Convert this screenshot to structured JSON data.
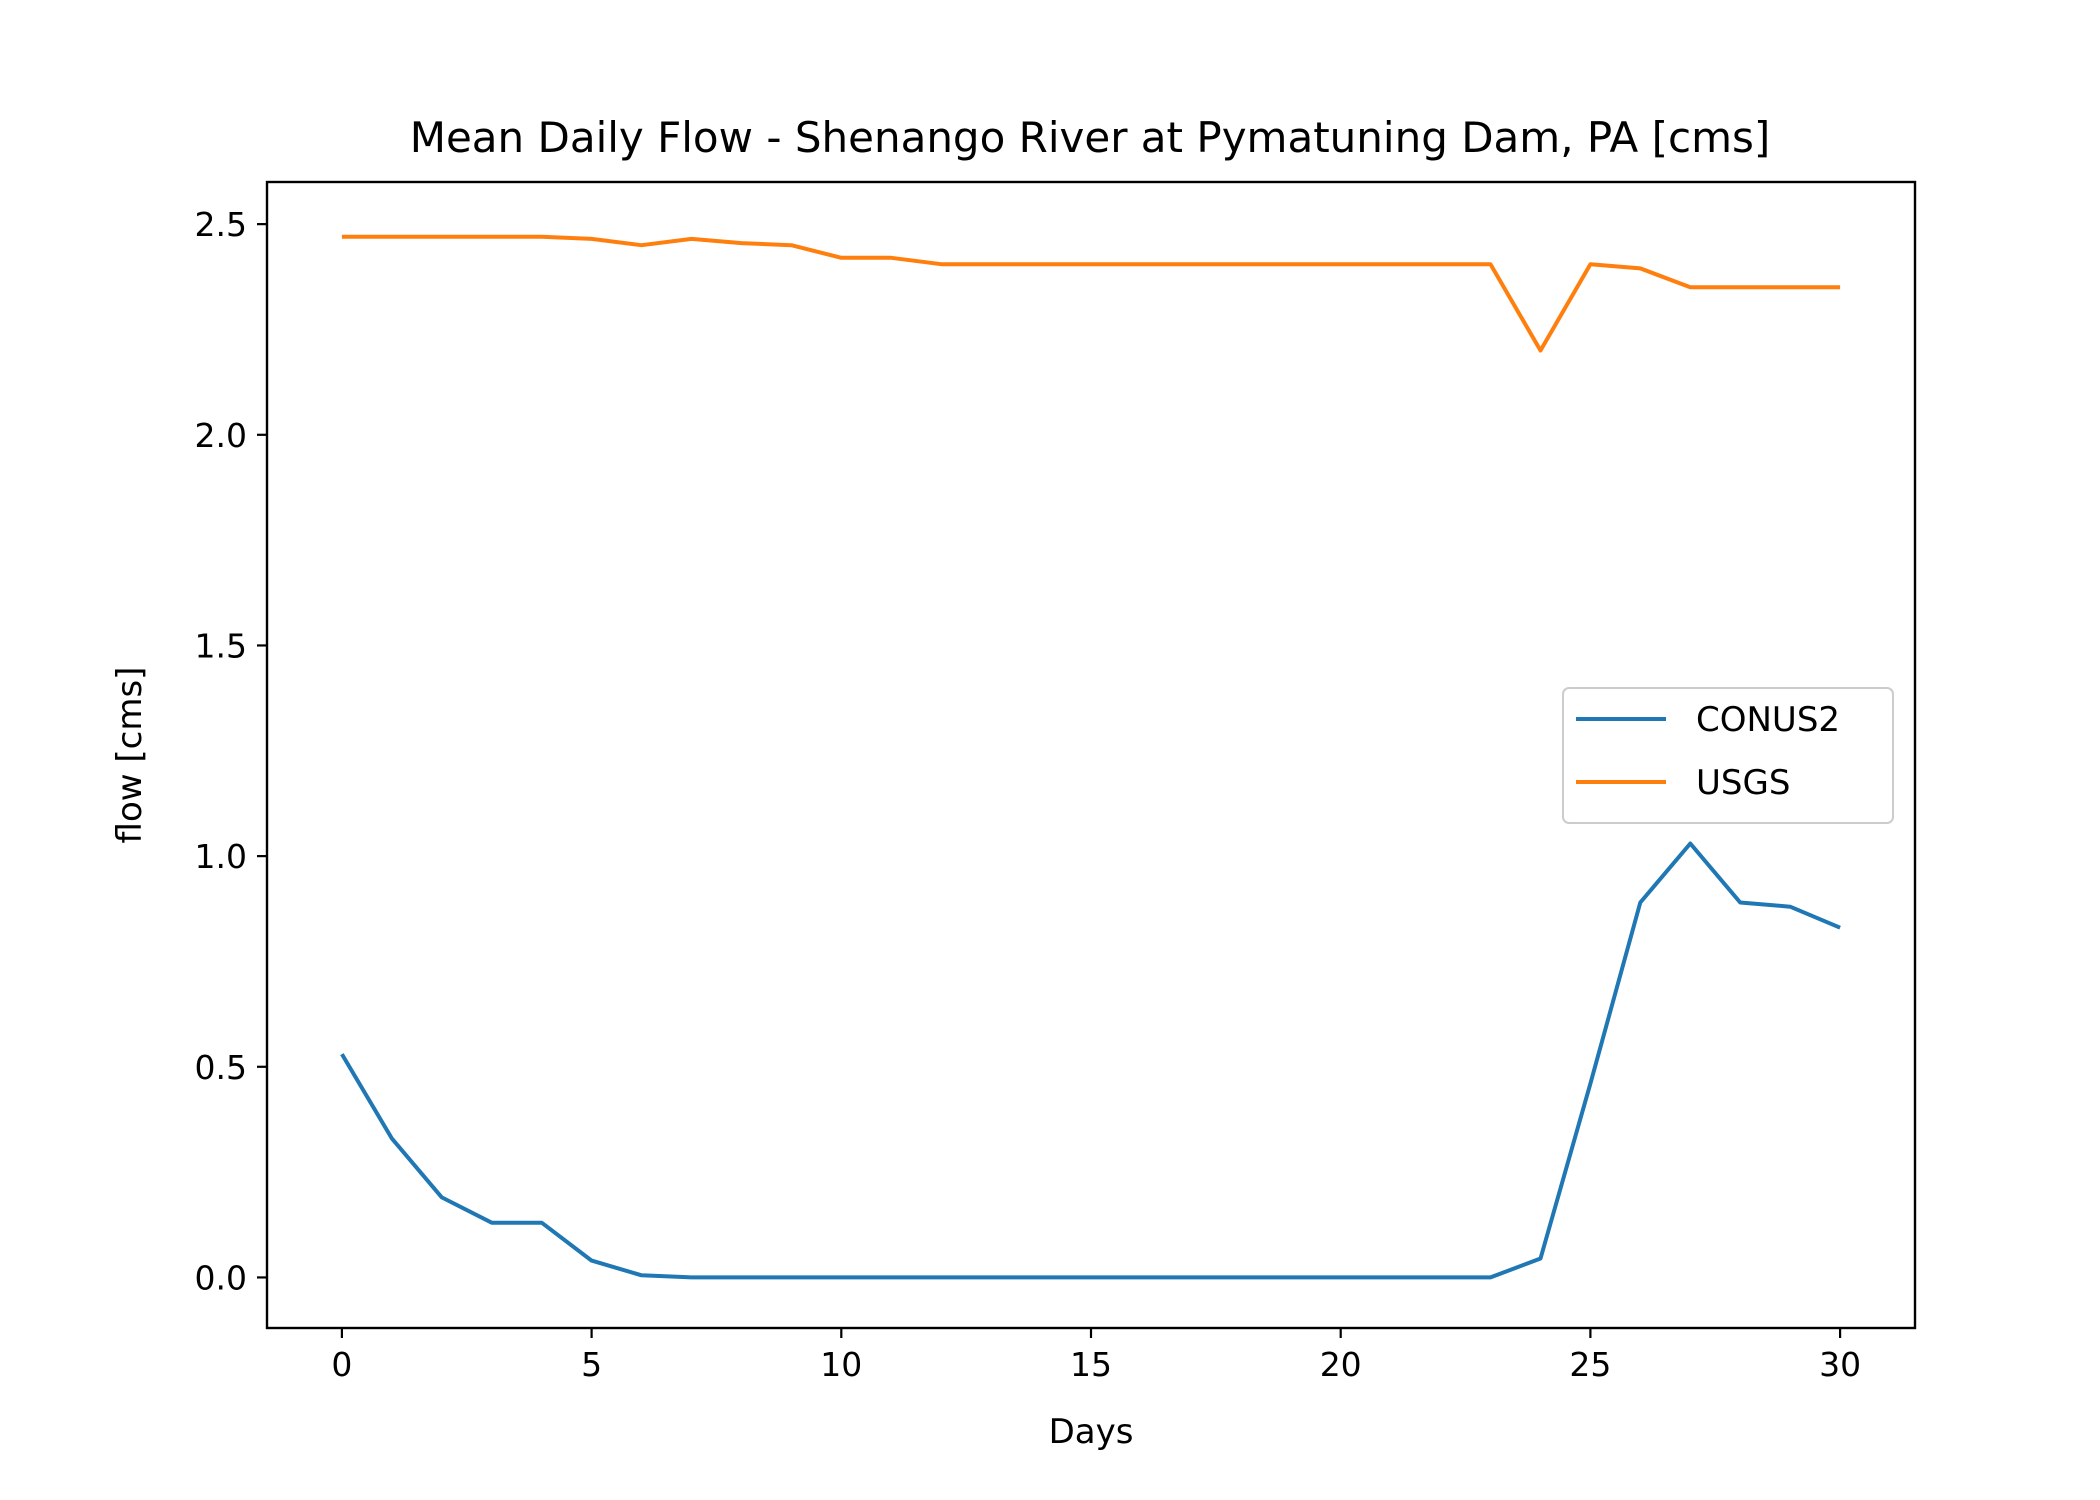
{
  "chart_data": {
    "type": "line",
    "title": "Mean Daily Flow - Shenango River at Pymatuning Dam, PA [cms]",
    "xlabel": "Days",
    "ylabel": "flow [cms]",
    "xlim": [
      -1.5,
      31.5
    ],
    "ylim": [
      -0.12,
      2.6
    ],
    "xticks": [
      0,
      5,
      10,
      15,
      20,
      25,
      30
    ],
    "yticks": [
      0.0,
      0.5,
      1.0,
      1.5,
      2.0,
      2.5
    ],
    "xtick_labels": [
      "0",
      "5",
      "10",
      "15",
      "20",
      "25",
      "30"
    ],
    "ytick_labels": [
      "0.0",
      "0.5",
      "1.0",
      "1.5",
      "2.0",
      "2.5"
    ],
    "legend_position": "center-right",
    "grid": false,
    "x": [
      0,
      1,
      2,
      3,
      4,
      5,
      6,
      7,
      8,
      9,
      10,
      11,
      12,
      13,
      14,
      15,
      16,
      17,
      18,
      19,
      20,
      21,
      22,
      23,
      24,
      25,
      26,
      27,
      28,
      29,
      30
    ],
    "series": [
      {
        "name": "CONUS2",
        "color": "#1f77b4",
        "values": [
          0.53,
          0.33,
          0.19,
          0.13,
          0.13,
          0.04,
          0.005,
          0.0,
          0.0,
          0.0,
          0.0,
          0.0,
          0.0,
          0.0,
          0.0,
          0.0,
          0.0,
          0.0,
          0.0,
          0.0,
          0.0,
          0.0,
          0.0,
          0.0,
          0.045,
          0.46,
          0.89,
          1.03,
          0.89,
          0.88,
          0.83
        ]
      },
      {
        "name": "USGS",
        "color": "#ff7f0e",
        "values": [
          2.47,
          2.47,
          2.47,
          2.47,
          2.47,
          2.465,
          2.45,
          2.465,
          2.455,
          2.45,
          2.42,
          2.42,
          2.405,
          2.405,
          2.405,
          2.405,
          2.405,
          2.405,
          2.405,
          2.405,
          2.405,
          2.405,
          2.405,
          2.405,
          2.2,
          2.405,
          2.395,
          2.35,
          2.35,
          2.35,
          2.35
        ]
      }
    ]
  }
}
